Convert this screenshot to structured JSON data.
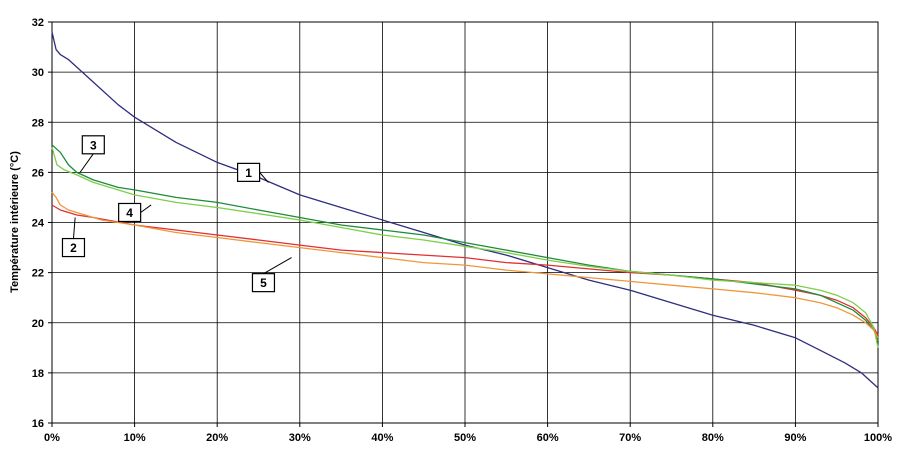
{
  "chart_data": {
    "type": "line",
    "xlabel": "",
    "ylabel": "Température intérieure (°C)",
    "xlim": [
      0,
      100
    ],
    "ylim": [
      16,
      32
    ],
    "x_ticks": [
      0,
      10,
      20,
      30,
      40,
      50,
      60,
      70,
      80,
      90,
      100
    ],
    "x_tick_labels": [
      "0%",
      "10%",
      "20%",
      "30%",
      "40%",
      "50%",
      "60%",
      "70%",
      "80%",
      "90%",
      "100%"
    ],
    "y_ticks": [
      16,
      18,
      20,
      22,
      24,
      26,
      28,
      30,
      32
    ],
    "y_tick_labels": [
      "16",
      "18",
      "20",
      "22",
      "24",
      "26",
      "28",
      "30",
      "32"
    ],
    "grid": true,
    "series": [
      {
        "name": "1",
        "color": "#2e2e7f",
        "points": [
          [
            0,
            31.6
          ],
          [
            0.5,
            30.9
          ],
          [
            1,
            30.7
          ],
          [
            2,
            30.5
          ],
          [
            3,
            30.2
          ],
          [
            5,
            29.6
          ],
          [
            8,
            28.7
          ],
          [
            10,
            28.2
          ],
          [
            15,
            27.2
          ],
          [
            20,
            26.4
          ],
          [
            25,
            25.8
          ],
          [
            30,
            25.1
          ],
          [
            35,
            24.6
          ],
          [
            40,
            24.1
          ],
          [
            45,
            23.6
          ],
          [
            50,
            23.1
          ],
          [
            55,
            22.7
          ],
          [
            60,
            22.2
          ],
          [
            65,
            21.7
          ],
          [
            70,
            21.3
          ],
          [
            75,
            20.8
          ],
          [
            80,
            20.3
          ],
          [
            85,
            19.9
          ],
          [
            90,
            19.4
          ],
          [
            93,
            18.9
          ],
          [
            96,
            18.4
          ],
          [
            98,
            18.0
          ],
          [
            99,
            17.7
          ],
          [
            100,
            17.4
          ]
        ]
      },
      {
        "name": "2",
        "color": "#e03030",
        "points": [
          [
            0,
            24.7
          ],
          [
            1,
            24.5
          ],
          [
            3,
            24.3
          ],
          [
            5,
            24.2
          ],
          [
            10,
            23.9
          ],
          [
            15,
            23.7
          ],
          [
            20,
            23.5
          ],
          [
            25,
            23.3
          ],
          [
            30,
            23.1
          ],
          [
            35,
            22.9
          ],
          [
            40,
            22.8
          ],
          [
            45,
            22.7
          ],
          [
            50,
            22.6
          ],
          [
            55,
            22.4
          ],
          [
            60,
            22.3
          ],
          [
            65,
            22.15
          ],
          [
            70,
            22.0
          ],
          [
            75,
            21.9
          ],
          [
            80,
            21.75
          ],
          [
            85,
            21.6
          ],
          [
            90,
            21.3
          ],
          [
            93,
            21.1
          ],
          [
            95,
            20.9
          ],
          [
            97,
            20.6
          ],
          [
            98.5,
            20.2
          ],
          [
            99.5,
            19.8
          ],
          [
            100,
            19.5
          ]
        ]
      },
      {
        "name": "3",
        "color": "#1f8a3a",
        "points": [
          [
            0,
            27.1
          ],
          [
            1,
            26.8
          ],
          [
            2,
            26.3
          ],
          [
            3,
            26.0
          ],
          [
            5,
            25.7
          ],
          [
            8,
            25.4
          ],
          [
            10,
            25.3
          ],
          [
            15,
            25.0
          ],
          [
            20,
            24.8
          ],
          [
            25,
            24.5
          ],
          [
            30,
            24.2
          ],
          [
            35,
            23.9
          ],
          [
            40,
            23.7
          ],
          [
            45,
            23.5
          ],
          [
            50,
            23.2
          ],
          [
            55,
            22.9
          ],
          [
            60,
            22.6
          ],
          [
            65,
            22.3
          ],
          [
            70,
            22.05
          ],
          [
            75,
            21.9
          ],
          [
            80,
            21.75
          ],
          [
            85,
            21.55
          ],
          [
            90,
            21.35
          ],
          [
            93,
            21.1
          ],
          [
            95,
            20.8
          ],
          [
            97,
            20.5
          ],
          [
            98.5,
            20.1
          ],
          [
            99.5,
            19.7
          ],
          [
            100,
            19.3
          ]
        ]
      },
      {
        "name": "4",
        "color": "#7ccf4a",
        "points": [
          [
            0,
            27.0
          ],
          [
            0.6,
            26.3
          ],
          [
            1.5,
            26.1
          ],
          [
            3,
            25.9
          ],
          [
            5,
            25.6
          ],
          [
            8,
            25.3
          ],
          [
            10,
            25.1
          ],
          [
            15,
            24.8
          ],
          [
            20,
            24.6
          ],
          [
            25,
            24.35
          ],
          [
            30,
            24.1
          ],
          [
            35,
            23.8
          ],
          [
            40,
            23.5
          ],
          [
            45,
            23.3
          ],
          [
            50,
            23.05
          ],
          [
            55,
            22.8
          ],
          [
            60,
            22.5
          ],
          [
            65,
            22.25
          ],
          [
            70,
            22.05
          ],
          [
            75,
            21.9
          ],
          [
            80,
            21.7
          ],
          [
            85,
            21.6
          ],
          [
            90,
            21.5
          ],
          [
            93,
            21.3
          ],
          [
            95,
            21.1
          ],
          [
            97,
            20.8
          ],
          [
            98.5,
            20.4
          ],
          [
            99.5,
            19.8
          ],
          [
            100,
            19.0
          ]
        ]
      },
      {
        "name": "5",
        "color": "#f0963a",
        "points": [
          [
            0,
            25.2
          ],
          [
            0.5,
            25.0
          ],
          [
            1,
            24.7
          ],
          [
            2,
            24.5
          ],
          [
            4,
            24.3
          ],
          [
            6,
            24.1
          ],
          [
            10,
            23.9
          ],
          [
            15,
            23.6
          ],
          [
            20,
            23.4
          ],
          [
            25,
            23.2
          ],
          [
            30,
            23.0
          ],
          [
            35,
            22.8
          ],
          [
            40,
            22.6
          ],
          [
            45,
            22.4
          ],
          [
            50,
            22.3
          ],
          [
            55,
            22.1
          ],
          [
            60,
            21.95
          ],
          [
            65,
            21.8
          ],
          [
            70,
            21.65
          ],
          [
            75,
            21.5
          ],
          [
            80,
            21.35
          ],
          [
            85,
            21.2
          ],
          [
            90,
            21.0
          ],
          [
            93,
            20.8
          ],
          [
            95,
            20.6
          ],
          [
            97,
            20.3
          ],
          [
            98.5,
            20.0
          ],
          [
            99.5,
            19.7
          ],
          [
            100,
            19.4
          ]
        ]
      }
    ],
    "annotations": [
      {
        "label": "1",
        "box": [
          23.8,
          26.0
        ],
        "leader_end": [
          26.2,
          25.6
        ]
      },
      {
        "label": "2",
        "box": [
          2.6,
          23.0
        ],
        "leader_end": [
          2.8,
          24.2
        ]
      },
      {
        "label": "3",
        "box": [
          5.0,
          27.1
        ],
        "leader_end": [
          3.4,
          26.0
        ]
      },
      {
        "label": "4",
        "box": [
          9.4,
          24.4
        ],
        "leader_end": [
          12.0,
          24.7
        ]
      },
      {
        "label": "5",
        "box": [
          25.6,
          21.6
        ],
        "leader_end": [
          29.0,
          22.6
        ]
      }
    ]
  }
}
